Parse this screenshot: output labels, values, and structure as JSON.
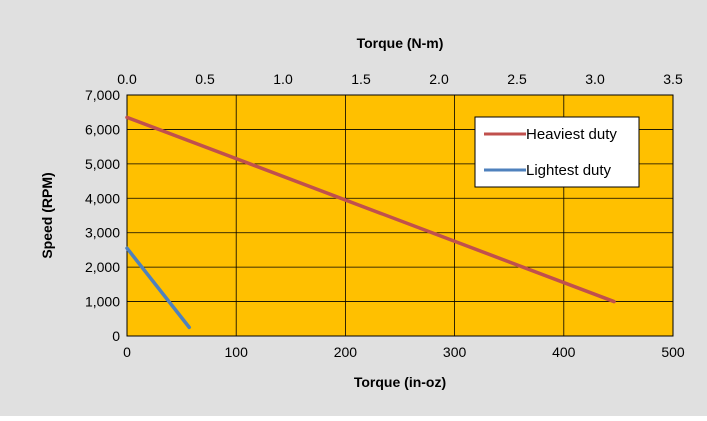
{
  "chart_data": {
    "type": "line",
    "x_axis_bottom": {
      "label": "Torque (in-oz)",
      "range": [
        0,
        500
      ],
      "ticks": [
        "0",
        "100",
        "200",
        "300",
        "400",
        "500"
      ]
    },
    "x_axis_top": {
      "label": "Torque (N-m)",
      "range": [
        0.0,
        3.5
      ],
      "ticks": [
        "0.0",
        "0.5",
        "1.0",
        "1.5",
        "2.0",
        "2.5",
        "3.0",
        "3.5"
      ]
    },
    "y_axis": {
      "label": "Speed (RPM)",
      "range": [
        0,
        7000
      ],
      "ticks": [
        "0",
        "1,000",
        "2,000",
        "3,000",
        "4,000",
        "5,000",
        "6,000",
        "7,000"
      ]
    },
    "series": [
      {
        "name": "Heaviest duty",
        "color": "#C0504D",
        "x": [
          0,
          446
        ],
        "y": [
          6350,
          1000
        ]
      },
      {
        "name": "Lightest duty",
        "color": "#4F81BD",
        "x": [
          0,
          57
        ],
        "y": [
          2550,
          250
        ]
      }
    ],
    "legend_position": "top-right",
    "grid": true,
    "colors": {
      "background": "#E0E0E0",
      "plot_area": "#FFC000",
      "grid": "#000000"
    }
  }
}
